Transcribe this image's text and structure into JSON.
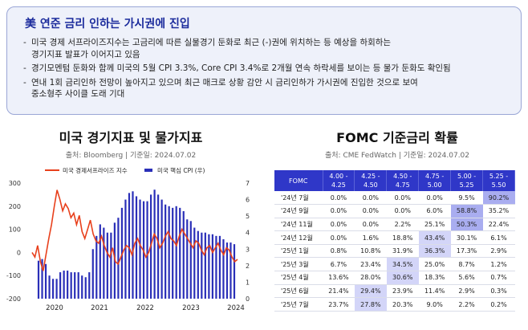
{
  "summary": {
    "title": "美 연준 금리 인하는 가시권에 진입",
    "bullets": [
      {
        "line1": "미국 경제 서프라이즈지수는 고금리에 따른 실물경기 둔화로 최근 (-)권에 위치하는 등 예상을 하회하는",
        "line2": "경기지표 발표가 이어지고 있음"
      },
      {
        "line1": "경기모멘텀 둔화와 함께 미국의 5월 CPI 3.3%, Core CPI 3.4%로 2개월 연속 하락세를 보이는 등 물가 둔화도 확인됨",
        "line2": ""
      },
      {
        "line1": "연내 1회 금리인하 전망이 높아지고 있으며 최근 매크로 상황 감안 시 금리인하가 가시권에 진입한 것으로 보여",
        "line2": "중소형주 사이클 도래 기대"
      }
    ]
  },
  "left": {
    "title": "미국 경기지표 및 물가지표",
    "source": "출처: Bloomberg | 기준일: 2024.07.02"
  },
  "right": {
    "title": "FOMC 기준금리 확률",
    "source": "출처: CME FedWatch | 기준일: 2024.07.02"
  },
  "colors": {
    "surprise": "#e8401c",
    "cpi": "#2a2fb8",
    "accent": "#1b2b9c"
  },
  "chart_data": {
    "type": "bar",
    "x_ticks": [
      "2020",
      "2021",
      "2022",
      "2023",
      "2024"
    ],
    "y_left": {
      "ticks": [
        "300",
        "200",
        "100",
        "0",
        "-100",
        "-200"
      ],
      "range": [
        -200,
        300
      ]
    },
    "y_right": {
      "ticks": [
        "7",
        "6",
        "5",
        "4",
        "3",
        "2",
        "1",
        "0"
      ],
      "range": [
        0,
        7
      ]
    },
    "series": [
      {
        "name": "미국 경제서프라이즈 지수",
        "kind": "line",
        "axis": "left",
        "values": [
          0,
          -20,
          30,
          -40,
          -80,
          -10,
          60,
          120,
          200,
          270,
          230,
          180,
          210,
          190,
          150,
          170,
          120,
          160,
          90,
          60,
          100,
          140,
          80,
          50,
          40,
          70,
          30,
          0,
          -20,
          20,
          -40,
          -50,
          -20,
          10,
          30,
          20,
          -10,
          40,
          60,
          30,
          10,
          -20,
          0,
          40,
          80,
          60,
          20,
          40,
          70,
          90,
          60,
          50,
          30,
          70,
          100,
          80,
          60,
          40,
          20,
          50,
          40,
          10,
          -10,
          20,
          30,
          0,
          20,
          40,
          10,
          -10,
          20,
          10,
          -20,
          -40,
          -30
        ]
      },
      {
        "name": "미국 핵심 CPI (우)",
        "kind": "bar",
        "axis": "right",
        "values": [
          2.3,
          2.4,
          2.1,
          1.4,
          1.2,
          1.2,
          1.6,
          1.7,
          1.7,
          1.6,
          1.6,
          1.6,
          1.4,
          1.3,
          1.6,
          3.0,
          3.8,
          4.5,
          4.3,
          4.0,
          4.0,
          4.6,
          4.9,
          5.5,
          6.0,
          6.4,
          6.5,
          6.2,
          6.0,
          5.9,
          5.9,
          6.3,
          6.6,
          6.3,
          6.0,
          5.7,
          5.6,
          5.5,
          5.6,
          5.5,
          5.3,
          4.8,
          4.7,
          4.3,
          4.1,
          4.0,
          4.0,
          3.9,
          3.9,
          3.8,
          3.8,
          3.6,
          3.4,
          3.4,
          3.3
        ]
      }
    ]
  },
  "fomc_table": {
    "header_label": "FOMC",
    "columns": [
      "4.00 - 4.25",
      "4.25 - 4.50",
      "4.50 - 4.75",
      "4.75 - 5.00",
      "5.00 - 5.25",
      "5.25 - 5.50"
    ],
    "rows": [
      {
        "label": "'24년 7월",
        "values": [
          "0.0%",
          "0.0%",
          "0.0%",
          "0.0%",
          "9.5%",
          "90.2%"
        ],
        "highlight": 5
      },
      {
        "label": "'24년 9월",
        "values": [
          "0.0%",
          "0.0%",
          "0.0%",
          "6.0%",
          "58.8%",
          "35.2%"
        ],
        "highlight": 4
      },
      {
        "label": "'24년 11월",
        "values": [
          "0.0%",
          "0.0%",
          "2.2%",
          "25.1%",
          "50.3%",
          "22.4%"
        ],
        "highlight": 4
      },
      {
        "label": "'24년 12월",
        "values": [
          "0.0%",
          "1.6%",
          "18.8%",
          "43.4%",
          "30.1%",
          "6.1%"
        ],
        "highlight": 3
      },
      {
        "label": "'25년 1월",
        "values": [
          "0.8%",
          "10.8%",
          "31.9%",
          "36.3%",
          "17.3%",
          "2.9%"
        ],
        "highlight": 3
      },
      {
        "label": "'25년 3월",
        "values": [
          "6.7%",
          "23.4%",
          "34.5%",
          "25.0%",
          "8.7%",
          "1.2%"
        ],
        "highlight": 2
      },
      {
        "label": "'25년 4월",
        "values": [
          "13.6%",
          "28.0%",
          "30.6%",
          "18.3%",
          "5.6%",
          "0.7%"
        ],
        "highlight": 2
      },
      {
        "label": "'25년 6월",
        "values": [
          "21.4%",
          "29.4%",
          "23.9%",
          "11.4%",
          "2.9%",
          "0.3%"
        ],
        "highlight": 1
      },
      {
        "label": "'25년 7월",
        "values": [
          "23.7%",
          "27.8%",
          "20.3%",
          "9.0%",
          "2.2%",
          "0.2%"
        ],
        "highlight": 1
      }
    ]
  }
}
